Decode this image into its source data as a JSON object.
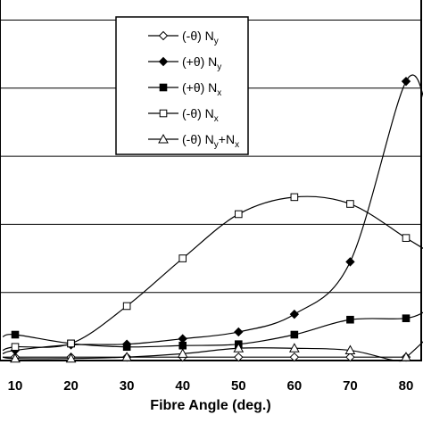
{
  "chart_data": {
    "type": "line",
    "xlabel": "Fibre Angle (deg.)",
    "ylabel": "",
    "x_ticks": [
      10,
      20,
      30,
      40,
      50,
      60,
      70,
      80
    ],
    "xlim": [
      0,
      84
    ],
    "ylim": [
      0,
      6
    ],
    "y_gridlines": [
      1,
      2,
      3,
      4,
      5,
      6
    ],
    "grid": "horizontal",
    "legend_position": "top-center",
    "series": [
      {
        "name": "(-θ) Ny",
        "name_main": "(-θ) N",
        "name_sub": "y",
        "marker": "diamond-open",
        "color": "#000000",
        "x": [
          0,
          10,
          20,
          30,
          40,
          50,
          60,
          70,
          80
        ],
        "y": [
          0.05,
          0.05,
          0.05,
          0.05,
          0.05,
          0.05,
          0.05,
          0.05,
          0.05
        ]
      },
      {
        "name": "(+θ) Ny",
        "name_main": "(+θ) N",
        "name_sub": "y",
        "marker": "diamond-filled",
        "color": "#000000",
        "x": [
          0,
          10,
          20,
          30,
          40,
          50,
          60,
          70,
          80,
          84
        ],
        "y": [
          0.1,
          0.15,
          0.23,
          0.24,
          0.32,
          0.42,
          0.68,
          1.45,
          4.1,
          3.6
        ]
      },
      {
        "name": "(+θ) Nx",
        "name_main": "(+θ) N",
        "name_sub": "x",
        "marker": "square-filled",
        "color": "#000000",
        "x": [
          0,
          10,
          20,
          30,
          40,
          50,
          60,
          70,
          80,
          84
        ],
        "y": [
          0.35,
          0.38,
          0.25,
          0.2,
          0.22,
          0.24,
          0.38,
          0.6,
          0.62,
          0.75
        ]
      },
      {
        "name": "(-θ) Nx",
        "name_main": "(-θ) N",
        "name_sub": "x",
        "marker": "square-open",
        "color": "#000000",
        "x": [
          0,
          10,
          20,
          30,
          40,
          50,
          60,
          70,
          80,
          84
        ],
        "y": [
          0.15,
          0.2,
          0.25,
          0.8,
          1.5,
          2.15,
          2.4,
          2.3,
          1.8,
          1.6
        ]
      },
      {
        "name": "(-θ) Ny+Nx",
        "name_main": "(-θ) N",
        "name_sub": "y",
        "name_join": "+N",
        "name_sub2": "x",
        "marker": "triangle-open",
        "color": "#000000",
        "x": [
          0,
          10,
          20,
          30,
          40,
          50,
          60,
          70,
          78,
          80,
          84
        ],
        "y": [
          0.05,
          0.03,
          0.03,
          0.05,
          0.1,
          0.18,
          0.18,
          0.15,
          0.0,
          0.05,
          0.35
        ]
      }
    ]
  }
}
